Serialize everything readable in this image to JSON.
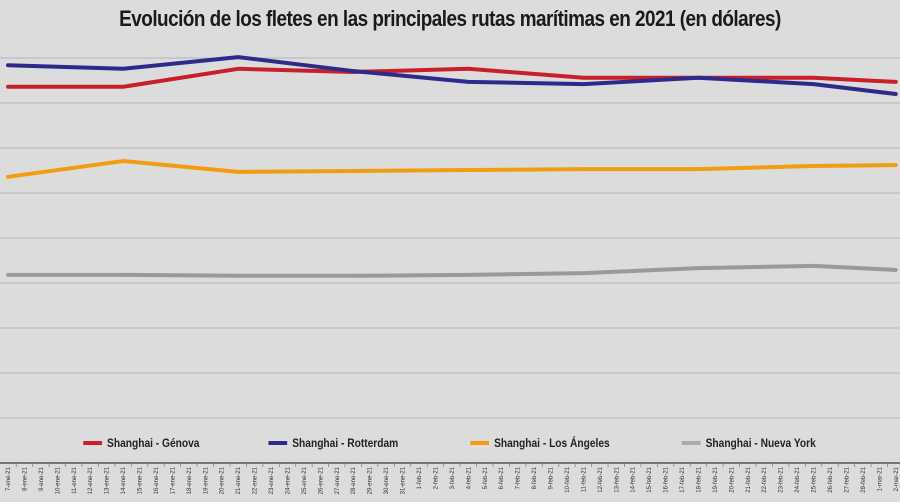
{
  "chart_data": {
    "type": "line",
    "title": "Evolución de los fletes en las principales rutas marítimas en 2021 (en dólares)",
    "xlabel": "",
    "ylabel": "",
    "ylim": [
      0,
      9400
    ],
    "grid": true,
    "legend_position": "bottom",
    "categories": [
      "7-ene-21",
      "8-ene-21",
      "9-ene-21",
      "10-ene-21",
      "11-ene-21",
      "12-ene-21",
      "13-ene-21",
      "14-ene-21",
      "15-ene-21",
      "16-ene-21",
      "17-ene-21",
      "18-ene-21",
      "19-ene-21",
      "20-ene-21",
      "21-ene-21",
      "22-ene-21",
      "23-ene-21",
      "24-ene-21",
      "25-ene-21",
      "26-ene-21",
      "27-ene-21",
      "28-ene-21",
      "29-ene-21",
      "30-ene-21",
      "31-ene-21",
      "1-feb-21",
      "2-feb-21",
      "3-feb-21",
      "4-feb-21",
      "5-feb-21",
      "6-feb-21",
      "7-feb-21",
      "8-feb-21",
      "9-feb-21",
      "10-feb-21",
      "11-feb-21",
      "12-feb-21",
      "13-feb-21",
      "14-feb-21",
      "15-feb-21",
      "16-feb-21",
      "17-feb-21",
      "18-feb-21",
      "19-feb-21",
      "20-feb-21",
      "21-feb-21",
      "22-feb-21",
      "23-feb-21",
      "24-feb-21",
      "25-feb-21",
      "26-feb-21",
      "27-feb-21",
      "28-feb-21",
      "1-mar-21",
      "2-mar-21"
    ],
    "x": [
      "7-ene-21",
      "14-ene-21",
      "21-ene-21",
      "28-ene-21",
      "4-feb-21",
      "11-feb-21",
      "18-feb-21",
      "25-feb-21",
      "2-mar-21"
    ],
    "series": [
      {
        "name": "Shanghai - Génova",
        "color": "#c8202a",
        "values": [
          8360,
          8360,
          8760,
          8690,
          8760,
          8560,
          8560,
          8560,
          8470
        ]
      },
      {
        "name": "Shanghai - Rotterdam",
        "color": "#2e2a8c",
        "values": [
          8840,
          8760,
          9020,
          8710,
          8470,
          8420,
          8560,
          8420,
          8200
        ]
      },
      {
        "name": "Shanghai - Los Ángeles",
        "color": "#f39c12",
        "values": [
          6360,
          6710,
          6470,
          6490,
          6510,
          6530,
          6530,
          6600,
          6620
        ]
      },
      {
        "name": "Shanghai - Nueva York",
        "color": "#9a9a9a",
        "values": [
          4180,
          4180,
          4160,
          4160,
          4180,
          4220,
          4330,
          4380,
          4290
        ]
      }
    ]
  }
}
